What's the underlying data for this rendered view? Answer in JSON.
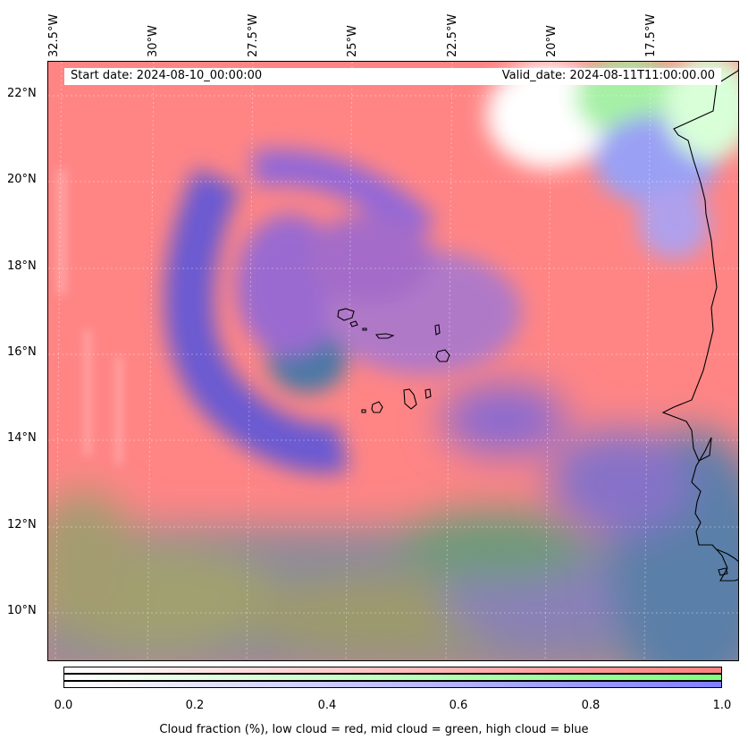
{
  "header": {
    "start_date": "Start date: 2024-08-10_00:00:00",
    "valid_date": "Valid_date: 2024-08-11T11:00:00.00"
  },
  "axes": {
    "lon_ticks": [
      "32.5°W",
      "30°W",
      "27.5°W",
      "25°W",
      "22.5°W",
      "20°W",
      "17.5°W"
    ],
    "lat_ticks": [
      "22°N",
      "20°N",
      "18°N",
      "16°N",
      "14°N",
      "12°N",
      "10°N"
    ]
  },
  "map": {
    "extent_lon": [
      -32.9,
      -15.5
    ],
    "extent_lat": [
      8.9,
      22.8
    ],
    "gridlines": true,
    "features": [
      "Cape Verde islands",
      "West African coastline"
    ]
  },
  "colorbar": {
    "ticks": [
      "0.0",
      "0.2",
      "0.4",
      "0.6",
      "0.8",
      "1.0"
    ],
    "label": "Cloud fraction (%), low cloud = red, mid cloud = green, high cloud = blue",
    "colors": {
      "low": "#ff8080",
      "mid": "#80ff80",
      "high": "#8080ff"
    }
  }
}
